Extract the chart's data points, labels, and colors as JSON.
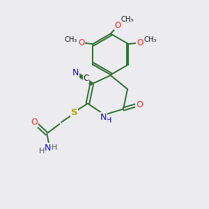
{
  "bg_color": "#ebebf0",
  "bond_color": "#2d6e2d",
  "N_color": "#0000ee",
  "O_color": "#ff2222",
  "S_color": "#bbaa00",
  "C_color": "#111111",
  "NH_color": "#0000cc",
  "NH2_color": "#555566",
  "lw": 1.4,
  "xlim": [
    0,
    10
  ],
  "ylim": [
    0,
    10
  ]
}
